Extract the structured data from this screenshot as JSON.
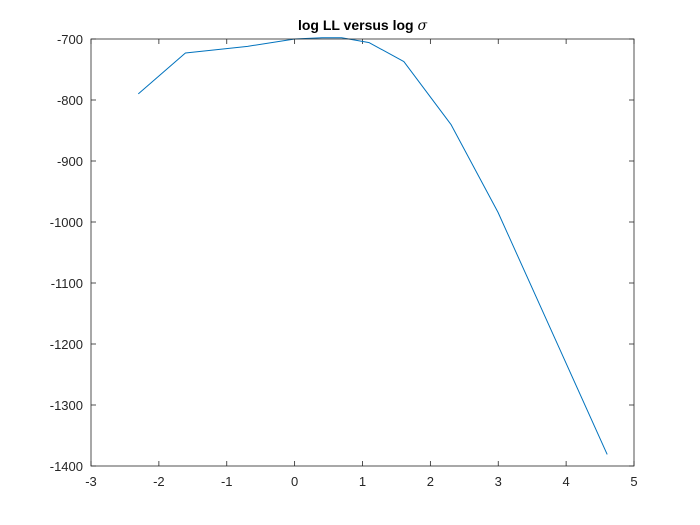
{
  "chart_data": {
    "type": "line",
    "title": "log LL versus log ",
    "title_symbol": "σ",
    "xlabel": "",
    "ylabel": "",
    "xlim": [
      -3,
      5
    ],
    "ylim": [
      -1400,
      -700
    ],
    "xticks": [
      -3,
      -2,
      -1,
      0,
      1,
      2,
      3,
      4,
      5
    ],
    "yticks": [
      -700,
      -800,
      -900,
      -1000,
      -1100,
      -1200,
      -1300,
      -1400
    ],
    "grid": false,
    "series": [
      {
        "color": "#0072BD",
        "x": [
          -2.303,
          -1.609,
          -0.693,
          0,
          0.405,
          0.693,
          1.099,
          1.609,
          2.303,
          2.996,
          3.912,
          4.605
        ],
        "y": [
          -790,
          -723,
          -712,
          -700,
          -698,
          -698,
          -706,
          -737,
          -840,
          -984,
          -1210,
          -1381
        ]
      }
    ]
  }
}
